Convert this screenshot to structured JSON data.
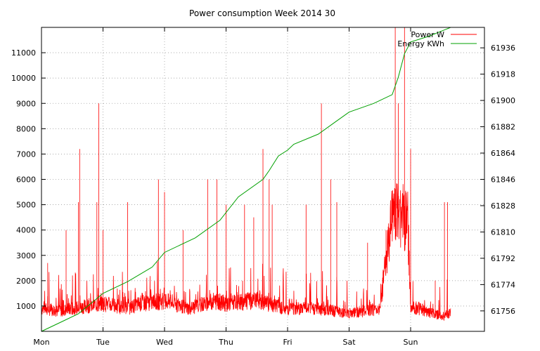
{
  "chart_data": {
    "type": "line",
    "title": "Power consumption Week 2014 30",
    "x_categories": [
      "Mon",
      "Tue",
      "Wed",
      "Thu",
      "Fri",
      "Sat",
      "Sun"
    ],
    "xlim_days": [
      0,
      7.2
    ],
    "y_left": {
      "lim": [
        0,
        12000
      ],
      "ticks": [
        1000,
        2000,
        3000,
        4000,
        5000,
        6000,
        7000,
        8000,
        9000,
        10000,
        11000
      ]
    },
    "y_right": {
      "lim": [
        61742,
        61950
      ],
      "ticks": [
        61756,
        61774,
        61792,
        61810,
        61828,
        61846,
        61864,
        61882,
        61900,
        61918,
        61936
      ]
    },
    "grid": true,
    "legend_position": "top-right",
    "series": [
      {
        "name": "Power W",
        "color": "#ff0000",
        "axis": "left",
        "baseline_by_day": [
          {
            "day": 0.0,
            "value": 900
          },
          {
            "day": 0.3,
            "value": 800
          },
          {
            "day": 0.5,
            "value": 900
          },
          {
            "day": 1.0,
            "value": 1100
          },
          {
            "day": 1.4,
            "value": 900
          },
          {
            "day": 1.6,
            "value": 1100
          },
          {
            "day": 2.0,
            "value": 1200
          },
          {
            "day": 2.4,
            "value": 900
          },
          {
            "day": 2.8,
            "value": 1200
          },
          {
            "day": 3.0,
            "value": 1100
          },
          {
            "day": 3.5,
            "value": 1200
          },
          {
            "day": 4.0,
            "value": 900
          },
          {
            "day": 4.5,
            "value": 900
          },
          {
            "day": 5.0,
            "value": 700
          },
          {
            "day": 5.5,
            "value": 900
          },
          {
            "day": 5.7,
            "value": 4500
          },
          {
            "day": 5.95,
            "value": 4500
          },
          {
            "day": 6.0,
            "value": 1000
          },
          {
            "day": 6.5,
            "value": 600
          },
          {
            "day": 6.65,
            "value": 700
          }
        ],
        "spikes": [
          {
            "day": 0.1,
            "value": 2700
          },
          {
            "day": 0.4,
            "value": 4000
          },
          {
            "day": 0.6,
            "value": 5100
          },
          {
            "day": 0.62,
            "value": 7200
          },
          {
            "day": 0.9,
            "value": 5100
          },
          {
            "day": 0.93,
            "value": 9000
          },
          {
            "day": 1.0,
            "value": 4000
          },
          {
            "day": 1.4,
            "value": 5100
          },
          {
            "day": 1.9,
            "value": 6000
          },
          {
            "day": 2.0,
            "value": 5500
          },
          {
            "day": 2.3,
            "value": 4000
          },
          {
            "day": 2.7,
            "value": 6000
          },
          {
            "day": 2.85,
            "value": 6000
          },
          {
            "day": 3.0,
            "value": 5000
          },
          {
            "day": 3.3,
            "value": 5000
          },
          {
            "day": 3.45,
            "value": 4500
          },
          {
            "day": 3.6,
            "value": 7200
          },
          {
            "day": 3.7,
            "value": 6000
          },
          {
            "day": 3.75,
            "value": 5000
          },
          {
            "day": 4.3,
            "value": 5000
          },
          {
            "day": 4.55,
            "value": 9000
          },
          {
            "day": 4.7,
            "value": 6000
          },
          {
            "day": 4.8,
            "value": 5100
          },
          {
            "day": 5.3,
            "value": 3500
          },
          {
            "day": 5.6,
            "value": 4000
          },
          {
            "day": 5.75,
            "value": 12000
          },
          {
            "day": 5.8,
            "value": 9000
          },
          {
            "day": 5.9,
            "value": 12000
          },
          {
            "day": 6.0,
            "value": 7200
          },
          {
            "day": 6.4,
            "value": 2000
          },
          {
            "day": 6.55,
            "value": 5100
          },
          {
            "day": 6.6,
            "value": 5100
          }
        ]
      },
      {
        "name": "Energy KWh",
        "color": "#00a000",
        "axis": "right",
        "points": [
          {
            "day": 0.0,
            "value": 61742
          },
          {
            "day": 0.3,
            "value": 61748
          },
          {
            "day": 0.6,
            "value": 61754
          },
          {
            "day": 1.0,
            "value": 61768
          },
          {
            "day": 1.4,
            "value": 61776
          },
          {
            "day": 1.8,
            "value": 61786
          },
          {
            "day": 2.0,
            "value": 61796
          },
          {
            "day": 2.5,
            "value": 61806
          },
          {
            "day": 2.9,
            "value": 61818
          },
          {
            "day": 3.2,
            "value": 61834
          },
          {
            "day": 3.6,
            "value": 61846
          },
          {
            "day": 3.7,
            "value": 61852
          },
          {
            "day": 3.85,
            "value": 61862
          },
          {
            "day": 4.0,
            "value": 61866
          },
          {
            "day": 4.1,
            "value": 61870
          },
          {
            "day": 4.5,
            "value": 61877
          },
          {
            "day": 4.8,
            "value": 61886
          },
          {
            "day": 5.0,
            "value": 61892
          },
          {
            "day": 5.4,
            "value": 61898
          },
          {
            "day": 5.7,
            "value": 61904
          },
          {
            "day": 5.8,
            "value": 61916
          },
          {
            "day": 5.9,
            "value": 61932
          },
          {
            "day": 6.0,
            "value": 61940
          },
          {
            "day": 6.3,
            "value": 61944
          },
          {
            "day": 6.65,
            "value": 61950
          }
        ]
      }
    ]
  }
}
